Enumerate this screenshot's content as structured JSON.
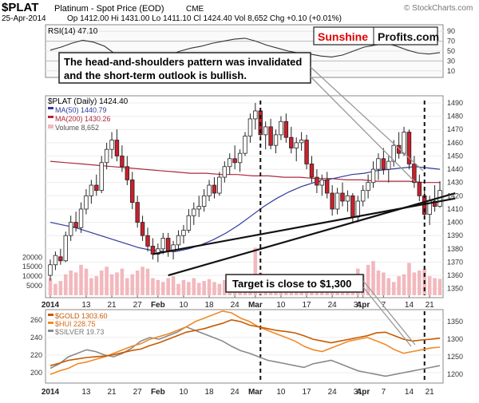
{
  "header": {
    "symbol": "$PLAT",
    "name": "Platinum - Spot Price (EOD)",
    "exchange": "CME",
    "watermark": "© StockCharts.com",
    "date": "25-Apr-2014",
    "quote": "Op 1412.00  Hi 1431.00  Lo 1411.10  Cl 1424.40  Vol 8,652  Chg +0.10 (+0.01%)"
  },
  "brand": {
    "part1": "Sunshine",
    "part2": "Profits.com"
  },
  "annotations": {
    "callout_line1": "The head-and-shoulders pattern was invalidated",
    "callout_line2": "and the short-term outlook is bullish.",
    "target": "Target is close to $1,300"
  },
  "colors": {
    "candle_up": "#ffffff",
    "candle_down": "#cc1f2b",
    "ma50": "#2e3b9a",
    "ma200": "#b0283a",
    "volume": "#f2b8bd",
    "gold": "#c85a00",
    "hui": "#f08a2a",
    "silver": "#8a8a8a",
    "rsi": "#333333",
    "brand_red": "#e00000"
  },
  "chart_data": [
    {
      "type": "line",
      "title": "RSI(14) 47.10",
      "y_ticks": [
        90,
        70,
        50,
        30,
        10
      ],
      "ylim": [
        0,
        100
      ],
      "values": [
        52,
        58,
        66,
        72,
        68,
        60,
        44,
        36,
        30,
        28,
        34,
        42,
        50,
        56,
        60,
        66,
        70,
        74,
        76,
        70,
        62,
        56,
        50,
        46,
        44,
        40,
        38,
        42,
        50,
        58,
        62,
        66,
        60,
        52,
        46,
        44,
        47
      ]
    },
    {
      "type": "candlestick",
      "title": "$PLAT (Daily) 1424.40",
      "legend": [
        "MA(50) 1440.79",
        "MA(200) 1430.26",
        "Volume 8,652"
      ],
      "ylim": [
        1345,
        1493
      ],
      "y_ticks": [
        1490,
        1480,
        1470,
        1460,
        1450,
        1440,
        1430,
        1420,
        1410,
        1400,
        1390,
        1380,
        1370,
        1360,
        1350
      ],
      "volume_ticks": [
        "20000",
        "15000",
        "10000",
        "5000"
      ],
      "volume_max": 26000,
      "x_labels": [
        {
          "label": "2014",
          "i": 0,
          "bold": true
        },
        {
          "label": "13",
          "i": 7,
          "bold": false
        },
        {
          "label": "21",
          "i": 12,
          "bold": false
        },
        {
          "label": "27",
          "i": 17,
          "bold": false
        },
        {
          "label": "Feb",
          "i": 21,
          "bold": true
        },
        {
          "label": "10",
          "i": 26,
          "bold": false
        },
        {
          "label": "18",
          "i": 31,
          "bold": false
        },
        {
          "label": "24",
          "i": 36,
          "bold": false
        },
        {
          "label": "Mar",
          "i": 40,
          "bold": true
        },
        {
          "label": "10",
          "i": 45,
          "bold": false
        },
        {
          "label": "17",
          "i": 50,
          "bold": false
        },
        {
          "label": "24",
          "i": 55,
          "bold": false
        },
        {
          "label": "31",
          "i": 60,
          "bold": false
        },
        {
          "label": "Apr",
          "i": 61,
          "bold": true
        },
        {
          "label": "7",
          "i": 65,
          "bold": false
        },
        {
          "label": "14",
          "i": 70,
          "bold": false
        },
        {
          "label": "21",
          "i": 74,
          "bold": false
        }
      ],
      "ohlc": [
        [
          1360,
          1372,
          1356,
          1368
        ],
        [
          1368,
          1378,
          1364,
          1375
        ],
        [
          1374,
          1380,
          1368,
          1371
        ],
        [
          1371,
          1393,
          1370,
          1390
        ],
        [
          1390,
          1405,
          1386,
          1400
        ],
        [
          1400,
          1408,
          1393,
          1396
        ],
        [
          1396,
          1415,
          1392,
          1410
        ],
        [
          1410,
          1425,
          1406,
          1420
        ],
        [
          1420,
          1432,
          1414,
          1428
        ],
        [
          1428,
          1436,
          1420,
          1424
        ],
        [
          1424,
          1450,
          1422,
          1445
        ],
        [
          1445,
          1460,
          1440,
          1455
        ],
        [
          1455,
          1468,
          1448,
          1462
        ],
        [
          1462,
          1470,
          1446,
          1450
        ],
        [
          1450,
          1458,
          1438,
          1442
        ],
        [
          1442,
          1450,
          1428,
          1432
        ],
        [
          1432,
          1438,
          1410,
          1415
        ],
        [
          1415,
          1420,
          1396,
          1400
        ],
        [
          1400,
          1405,
          1386,
          1390
        ],
        [
          1390,
          1396,
          1378,
          1382
        ],
        [
          1382,
          1388,
          1372,
          1376
        ],
        [
          1376,
          1384,
          1370,
          1380
        ],
        [
          1380,
          1392,
          1376,
          1388
        ],
        [
          1388,
          1392,
          1374,
          1378
        ],
        [
          1378,
          1386,
          1372,
          1383
        ],
        [
          1383,
          1394,
          1380,
          1390
        ],
        [
          1390,
          1398,
          1384,
          1394
        ],
        [
          1394,
          1410,
          1392,
          1405
        ],
        [
          1405,
          1415,
          1398,
          1410
        ],
        [
          1410,
          1420,
          1404,
          1412
        ],
        [
          1412,
          1425,
          1408,
          1420
        ],
        [
          1420,
          1432,
          1416,
          1428
        ],
        [
          1428,
          1434,
          1418,
          1422
        ],
        [
          1422,
          1438,
          1420,
          1434
        ],
        [
          1434,
          1446,
          1430,
          1442
        ],
        [
          1442,
          1452,
          1436,
          1448
        ],
        [
          1448,
          1458,
          1440,
          1445
        ],
        [
          1445,
          1455,
          1438,
          1452
        ],
        [
          1452,
          1468,
          1450,
          1465
        ],
        [
          1465,
          1482,
          1460,
          1478
        ],
        [
          1478,
          1490,
          1470,
          1484
        ],
        [
          1484,
          1486,
          1462,
          1466
        ],
        [
          1466,
          1476,
          1455,
          1472
        ],
        [
          1472,
          1478,
          1455,
          1458
        ],
        [
          1458,
          1470,
          1452,
          1466
        ],
        [
          1466,
          1480,
          1462,
          1476
        ],
        [
          1476,
          1482,
          1460,
          1464
        ],
        [
          1464,
          1472,
          1452,
          1456
        ],
        [
          1456,
          1464,
          1446,
          1460
        ],
        [
          1460,
          1468,
          1454,
          1462
        ],
        [
          1462,
          1466,
          1440,
          1444
        ],
        [
          1444,
          1450,
          1430,
          1434
        ],
        [
          1434,
          1440,
          1422,
          1428
        ],
        [
          1428,
          1436,
          1420,
          1432
        ],
        [
          1432,
          1438,
          1418,
          1422
        ],
        [
          1422,
          1428,
          1405,
          1410
        ],
        [
          1410,
          1426,
          1406,
          1422
        ],
        [
          1422,
          1430,
          1412,
          1416
        ],
        [
          1416,
          1424,
          1408,
          1420
        ],
        [
          1420,
          1422,
          1400,
          1404
        ],
        [
          1404,
          1420,
          1400,
          1416
        ],
        [
          1416,
          1428,
          1412,
          1424
        ],
        [
          1424,
          1436,
          1418,
          1430
        ],
        [
          1430,
          1446,
          1426,
          1440
        ],
        [
          1440,
          1452,
          1432,
          1448
        ],
        [
          1448,
          1456,
          1436,
          1440
        ],
        [
          1440,
          1450,
          1430,
          1446
        ],
        [
          1446,
          1462,
          1442,
          1458
        ],
        [
          1458,
          1468,
          1448,
          1452
        ],
        [
          1452,
          1472,
          1450,
          1468
        ],
        [
          1468,
          1470,
          1440,
          1444
        ],
        [
          1444,
          1450,
          1426,
          1430
        ],
        [
          1430,
          1436,
          1416,
          1420
        ],
        [
          1420,
          1424,
          1402,
          1406
        ],
        [
          1406,
          1420,
          1398,
          1416
        ],
        [
          1416,
          1428,
          1408,
          1412
        ],
        [
          1412,
          1431,
          1411,
          1424
        ]
      ],
      "volume": [
        9000,
        6000,
        7500,
        11000,
        13000,
        12000,
        16000,
        14000,
        9000,
        10000,
        13000,
        15000,
        11000,
        12000,
        14000,
        9000,
        11000,
        13000,
        15000,
        14000,
        9000,
        8000,
        7000,
        9000,
        10000,
        6000,
        8000,
        7000,
        9000,
        6500,
        7500,
        8500,
        7000,
        6000,
        8000,
        7500,
        9000,
        8000,
        8500,
        9500,
        25000,
        12000,
        10000,
        9000,
        11000,
        8000,
        7000,
        9000,
        8000,
        10000,
        9000,
        6000,
        7000,
        8000,
        7000,
        9000,
        6000,
        8000,
        7000,
        9000,
        14000,
        11000,
        16000,
        18000,
        13000,
        12000,
        9000,
        7000,
        10000,
        11000,
        17000,
        12000,
        13000,
        14000,
        10000,
        9000,
        8652
      ],
      "ma50": [
        1400,
        1398,
        1396,
        1393,
        1390,
        1387,
        1384,
        1381,
        1379,
        1378,
        1378,
        1380,
        1383,
        1387,
        1392,
        1398,
        1405,
        1412,
        1418,
        1423,
        1427,
        1430,
        1432,
        1434,
        1436,
        1437,
        1439,
        1440,
        1441,
        1442,
        1441,
        1440
      ],
      "ma200": [
        1446,
        1445,
        1444,
        1443,
        1442,
        1441,
        1440,
        1439,
        1438,
        1437,
        1437,
        1436,
        1436,
        1435,
        1435,
        1434,
        1434,
        1433,
        1433,
        1432,
        1432,
        1431,
        1431,
        1431,
        1430,
        1430
      ],
      "trendlines": [
        {
          "from": [
            23,
            1360
          ],
          "to": [
            79,
            1422
          ]
        },
        {
          "from": [
            20,
            1376
          ],
          "to": [
            79,
            1418
          ]
        }
      ],
      "verticals": [
        41,
        73
      ]
    },
    {
      "type": "line",
      "title": "$GOLD 1303.60",
      "series_labels": [
        "$GOLD 1303.60",
        "$HUI 228.75",
        "$SILVER 19.73"
      ],
      "left_ticks": [
        "260",
        "240",
        "220",
        "200"
      ],
      "right_ticks": [
        "1350",
        "1300",
        "1250",
        "1200"
      ],
      "x_labels": [
        "2014",
        "13",
        "21",
        "27",
        "Feb",
        "10",
        "18",
        "24",
        "Mar",
        "10",
        "17",
        "24",
        "31",
        "Apr",
        "7",
        "14",
        "21"
      ],
      "gold": [
        1225,
        1232,
        1240,
        1244,
        1248,
        1250,
        1252,
        1256,
        1262,
        1268,
        1272,
        1282,
        1290,
        1300,
        1310,
        1320,
        1325,
        1330,
        1338,
        1345,
        1355,
        1350,
        1340,
        1335,
        1330,
        1325,
        1322,
        1318,
        1310,
        1300,
        1295,
        1290,
        1295,
        1300,
        1305,
        1310,
        1318,
        1320,
        1310,
        1300,
        1295,
        1298,
        1300,
        1303
      ],
      "hui": [
        198,
        202,
        205,
        210,
        212,
        215,
        218,
        222,
        226,
        230,
        233,
        238,
        241,
        244,
        248,
        252,
        258,
        262,
        266,
        270,
        268,
        262,
        258,
        252,
        248,
        244,
        240,
        236,
        230,
        226,
        224,
        228,
        232,
        236,
        238,
        240,
        236,
        232,
        226,
        222,
        224,
        226,
        228,
        229
      ],
      "silver": [
        205,
        210,
        218,
        222,
        226,
        224,
        220,
        218,
        222,
        228,
        236,
        240,
        238,
        242,
        246,
        252,
        248,
        244,
        240,
        236,
        230,
        225,
        222,
        218,
        214,
        212,
        210,
        208,
        206,
        210,
        212,
        214,
        210,
        206,
        202,
        200,
        198,
        196,
        198,
        200,
        202,
        204,
        206,
        208
      ]
    }
  ]
}
